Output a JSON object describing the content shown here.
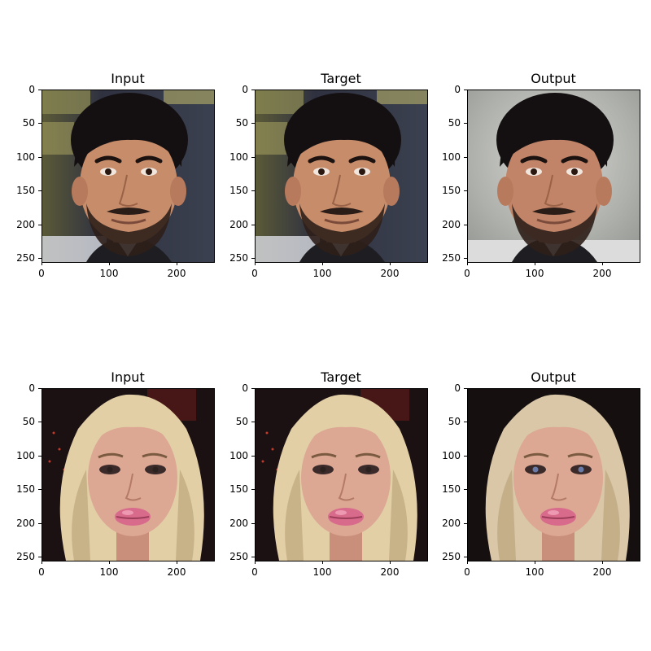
{
  "rows": [
    {
      "panels": [
        {
          "title": "Input",
          "subject": "man",
          "background": "poster"
        },
        {
          "title": "Target",
          "subject": "man",
          "background": "poster"
        },
        {
          "title": "Output",
          "subject": "man",
          "background": "blur"
        }
      ]
    },
    {
      "panels": [
        {
          "title": "Input",
          "subject": "woman",
          "background": "dark"
        },
        {
          "title": "Target",
          "subject": "woman",
          "background": "dark"
        },
        {
          "title": "Output",
          "subject": "woman",
          "background": "dark-soft"
        }
      ]
    }
  ],
  "axes": {
    "xticks": [
      "0",
      "100",
      "200"
    ],
    "yticks": [
      "0",
      "50",
      "100",
      "150",
      "200",
      "250"
    ],
    "xrange": [
      0,
      256
    ],
    "yrange": [
      0,
      256
    ]
  }
}
